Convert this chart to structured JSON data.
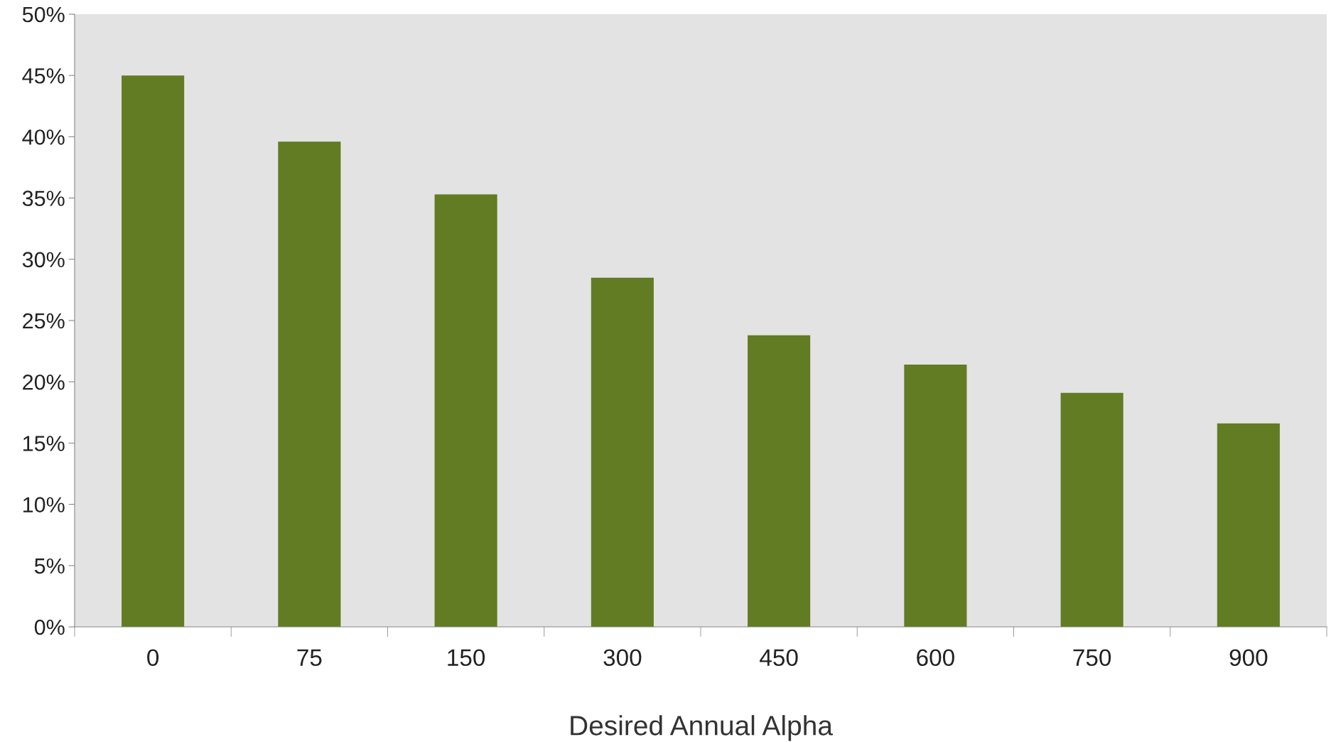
{
  "chart_data": {
    "type": "bar",
    "xlabel": "Desired Annual Alpha",
    "categories": [
      "0",
      "75",
      "150",
      "300",
      "450",
      "600",
      "750",
      "900"
    ],
    "values": [
      45.0,
      39.6,
      35.3,
      28.5,
      23.8,
      21.4,
      19.1,
      16.6
    ],
    "color": "#617c23",
    "ylim": [
      0,
      50
    ],
    "yticks": [
      {
        "value": 0,
        "label": "0%"
      },
      {
        "value": 5,
        "label": "5%"
      },
      {
        "value": 10,
        "label": "10%"
      },
      {
        "value": 15,
        "label": "15%"
      },
      {
        "value": 20,
        "label": "20%"
      },
      {
        "value": 25,
        "label": "25%"
      },
      {
        "value": 30,
        "label": "30%"
      },
      {
        "value": 35,
        "label": "35%"
      },
      {
        "value": 40,
        "label": "40%"
      },
      {
        "value": 45,
        "label": "45%"
      },
      {
        "value": 50,
        "label": "50%"
      }
    ],
    "grid": false,
    "legend": false
  }
}
